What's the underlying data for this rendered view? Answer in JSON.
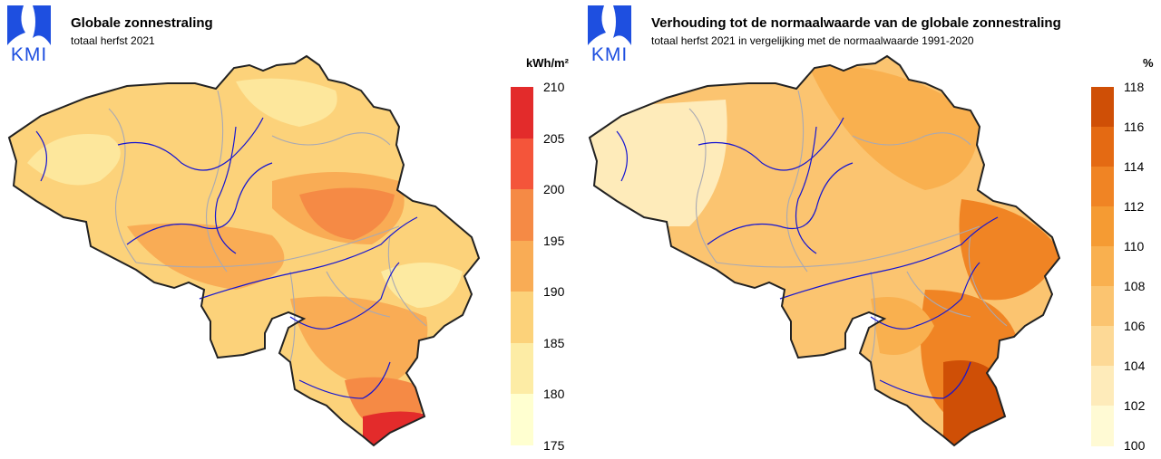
{
  "panels": [
    {
      "logo_text": "KMI",
      "title": "Globale zonnestraling",
      "subtitle": "totaal herfst 2021",
      "legend": {
        "unit": "kWh/m²",
        "ticks": [
          "210",
          "205",
          "200",
          "195",
          "190",
          "185",
          "180",
          "175"
        ],
        "colors": [
          "#e32b2b",
          "#f4553a",
          "#f58a45",
          "#f9ac55",
          "#fcd27a",
          "#fdeca5",
          "#ffffd0"
        ]
      },
      "map_colors": {
        "base": "#fcd27a",
        "mid": "#f9ac55",
        "high": "#f58a45",
        "max": "#e32b2b",
        "low": "#fdeca5"
      }
    },
    {
      "logo_text": "KMI",
      "title": "Verhouding tot de normaalwaarde van de globale zonnestraling",
      "subtitle": "totaal herfst 2021 in vergelijking met de normaalwaarde 1991-2020",
      "legend": {
        "unit": "%",
        "ticks": [
          "118",
          "116",
          "114",
          "112",
          "110",
          "108",
          "106",
          "104",
          "102",
          "100"
        ],
        "colors": [
          "#cf4f06",
          "#e46a13",
          "#f08424",
          "#f59b33",
          "#f9b04f",
          "#fbc470",
          "#fdd996",
          "#feebba",
          "#fffad4"
        ]
      },
      "map_colors": {
        "base": "#fbc470",
        "mid": "#f9b04f",
        "high": "#f08424",
        "max": "#cf4f06",
        "low": "#feebba"
      }
    }
  ]
}
